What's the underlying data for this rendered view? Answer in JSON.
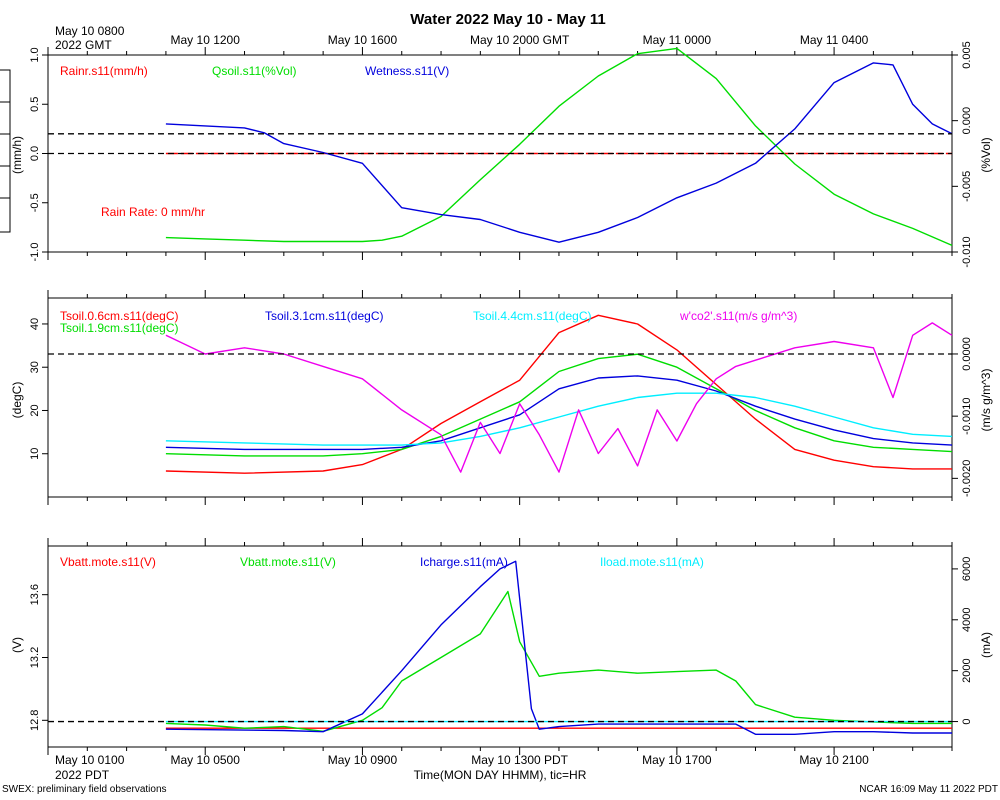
{
  "title": "Water 2022 May 10 - May 11",
  "top_axis": {
    "corner_label_line1": "May 10 0800",
    "corner_label_line2": "2022 GMT",
    "tick_labels": [
      "May 10 1200",
      "May 10 1600",
      "May 10 2000 GMT",
      "May 11 0000",
      "May 11 0400"
    ]
  },
  "bottom_axis": {
    "corner_label_line1": "May 10 0100",
    "corner_label_line2": "2022 PDT",
    "tick_labels": [
      "May 10 0500",
      "May 10 0900",
      "May 10 1300 PDT",
      "May 10 1700",
      "May 10 2100"
    ],
    "axis_title": "Time(MON DAY HHMM), tic=HR"
  },
  "footer": {
    "left": "SWEX: preliminary field observations",
    "right": "NCAR 16:09 May 11 2022 PDT"
  },
  "colors": {
    "red": "#ff0000",
    "green": "#00dd00",
    "blue": "#0000dd",
    "cyan": "#00eeff",
    "magenta": "#ee00ee",
    "black": "#000000"
  },
  "chart_data": [
    {
      "type": "line",
      "panel": "water",
      "x_range_hours_pdt": [
        0,
        23
      ],
      "ylabel_left": "(mm/h)",
      "ylabel_right": "(%Vol)",
      "ylim_left": [
        -1.0,
        1.0
      ],
      "ylim_right": [
        -0.01,
        0.005
      ],
      "yticks_left": [
        "-1.0",
        "-0.5",
        "0.0",
        "0.5",
        "1.0"
      ],
      "yticks_left_values": [
        -1.0,
        -0.5,
        0.0,
        0.5,
        1.0
      ],
      "yticks_right": [
        "-0.010",
        "-0.005",
        "0.000",
        "0.005"
      ],
      "yticks_right_values": [
        -0.01,
        -0.005,
        0.0,
        0.005
      ],
      "reference_lines": [
        {
          "axis": "left",
          "value": 0.0,
          "style": "dashed"
        },
        {
          "axis": "left",
          "value": 0.2,
          "style": "dashed"
        }
      ],
      "annotation": "Rain Rate: 0 mm/hr",
      "legend": [
        "Rainr.s11(mm/h)",
        "Qsoil.s11(%Vol)",
        "Wetness.s11(V)"
      ],
      "series": [
        {
          "name": "Rainr.s11(mm/h)",
          "color": "red",
          "axis": "left",
          "dashed": true,
          "x": [
            3.0,
            23.0
          ],
          "y": [
            0.0,
            0.0
          ]
        },
        {
          "name": "Qsoil.s11(%Vol)",
          "color": "green",
          "axis": "right",
          "x": [
            3,
            4,
            5,
            6,
            7,
            8,
            8.5,
            9,
            10,
            11,
            12,
            13,
            14,
            15,
            16,
            17,
            18,
            19,
            20,
            21,
            22,
            23
          ],
          "y": [
            -0.0089,
            -0.009,
            -0.0091,
            -0.0092,
            -0.0092,
            -0.0092,
            -0.0091,
            -0.0088,
            -0.0073,
            -0.0045,
            -0.0018,
            0.0011,
            0.0034,
            0.0051,
            0.0055,
            0.0032,
            -0.0004,
            -0.0033,
            -0.0056,
            -0.0071,
            -0.0082,
            -0.0095
          ]
        },
        {
          "name": "Wetness.s11(V)",
          "color": "blue",
          "axis": "left",
          "x": [
            3,
            4,
            5,
            5.5,
            6,
            7,
            8,
            9,
            10,
            11,
            12,
            13,
            14,
            15,
            16,
            17,
            18,
            19,
            20,
            21,
            21.5,
            22,
            22.5,
            23
          ],
          "y": [
            0.3,
            0.28,
            0.26,
            0.21,
            0.1,
            0.01,
            -0.1,
            -0.55,
            -0.62,
            -0.67,
            -0.8,
            -0.9,
            -0.8,
            -0.65,
            -0.45,
            -0.3,
            -0.1,
            0.25,
            0.72,
            0.92,
            0.9,
            0.5,
            0.3,
            0.2
          ]
        }
      ]
    },
    {
      "type": "line",
      "panel": "soil_temperature",
      "x_range_hours_pdt": [
        0,
        23
      ],
      "ylabel_left": "(degC)",
      "ylabel_right": "(m/s g/m^3)",
      "ylim_left": [
        0,
        46
      ],
      "ylim_right": [
        -0.0023,
        0.0009
      ],
      "yticks_left": [
        "10",
        "20",
        "30",
        "40"
      ],
      "yticks_left_values": [
        10,
        20,
        30,
        40
      ],
      "yticks_right": [
        "-0.0020",
        "-0.0010",
        "0.0000"
      ],
      "yticks_right_values": [
        -0.002,
        -0.001,
        0.0
      ],
      "reference_lines": [
        {
          "axis": "right",
          "value": 0.0,
          "style": "dashed"
        }
      ],
      "legend": [
        "Tsoil.0.6cm.s11(degC)",
        "Tsoil.1.9cm.s11(degC)",
        "Tsoil.3.1cm.s11(degC)",
        "Tsoil.4.4cm.s11(degC)",
        "w'co2'.s11(m/s g/m^3)"
      ],
      "series": [
        {
          "name": "Tsoil.0.6cm.s11(degC)",
          "color": "red",
          "axis": "left",
          "x": [
            3,
            5,
            7,
            8,
            9,
            10,
            11,
            12,
            13,
            14,
            15,
            16,
            17,
            18,
            19,
            20,
            21,
            22,
            23
          ],
          "y": [
            6,
            5.5,
            6,
            7.5,
            11,
            17,
            22,
            27,
            38,
            42,
            40,
            34,
            26,
            18,
            11,
            8.5,
            7,
            6.5,
            6.5
          ]
        },
        {
          "name": "Tsoil.1.9cm.s11(degC)",
          "color": "green",
          "axis": "left",
          "x": [
            3,
            5,
            7,
            8,
            9,
            10,
            11,
            12,
            13,
            14,
            15,
            16,
            17,
            18,
            19,
            20,
            21,
            22,
            23
          ],
          "y": [
            10,
            9.5,
            9.5,
            10,
            11,
            14,
            18,
            22,
            29,
            32,
            33,
            30,
            25,
            20,
            16,
            13,
            11.5,
            11,
            10.5
          ]
        },
        {
          "name": "Tsoil.3.1cm.s11(degC)",
          "color": "blue",
          "axis": "left",
          "x": [
            3,
            5,
            7,
            8,
            9,
            10,
            11,
            12,
            13,
            14,
            15,
            16,
            17,
            18,
            19,
            20,
            21,
            22,
            23
          ],
          "y": [
            11.5,
            11,
            11,
            11,
            11.5,
            13,
            16,
            19,
            25,
            27.5,
            28,
            27,
            24.5,
            21,
            18,
            15.5,
            13.5,
            12.5,
            12
          ]
        },
        {
          "name": "Tsoil.4.4cm.s11(degC)",
          "color": "cyan",
          "axis": "left",
          "x": [
            3,
            5,
            7,
            8,
            9,
            10,
            11,
            12,
            13,
            14,
            15,
            16,
            17,
            18,
            19,
            20,
            21,
            22,
            23
          ],
          "y": [
            13,
            12.5,
            12,
            12,
            12,
            12.5,
            14,
            16,
            18.5,
            21,
            23,
            24,
            24,
            23,
            21,
            18.5,
            16,
            14.5,
            14
          ]
        },
        {
          "name": "w'co2'.s11(m/s g/m^3)",
          "color": "magenta",
          "axis": "right",
          "x": [
            3,
            4,
            5,
            6,
            7,
            8,
            9,
            10,
            10.5,
            11,
            11.5,
            12,
            12.5,
            13,
            13.5,
            14,
            14.5,
            15,
            15.5,
            16,
            16.5,
            17,
            17.5,
            18,
            19,
            20,
            21,
            21.5,
            22,
            22.5,
            23
          ],
          "y": [
            0.0003,
            0.0,
            0.0001,
            0.0,
            -0.0002,
            -0.0004,
            -0.0009,
            -0.0013,
            -0.0019,
            -0.0011,
            -0.0016,
            -0.0008,
            -0.0013,
            -0.0019,
            -0.0009,
            -0.0016,
            -0.0012,
            -0.0018,
            -0.0009,
            -0.0014,
            -0.0008,
            -0.0004,
            -0.0002,
            -0.0001,
            0.0001,
            0.0002,
            0.0001,
            -0.0007,
            0.0003,
            0.0005,
            0.0003
          ]
        }
      ]
    },
    {
      "type": "line",
      "panel": "power",
      "x_range_hours_pdt": [
        0,
        23
      ],
      "ylabel_left": "(V)",
      "ylabel_right": "(mA)",
      "ylim_left": [
        12.63,
        13.91
      ],
      "ylim_right": [
        -1000,
        6900
      ],
      "yticks_left": [
        "12.8",
        "13.2",
        "13.6"
      ],
      "yticks_left_values": [
        12.8,
        13.2,
        13.6
      ],
      "yticks_right": [
        "0",
        "2000",
        "4000",
        "6000"
      ],
      "yticks_right_values": [
        0,
        2000,
        4000,
        6000
      ],
      "reference_lines": [
        {
          "axis": "right",
          "value": 0,
          "style": "dashed"
        }
      ],
      "legend": [
        "Vbatt.mote.s11(V)",
        "Vbatt.mote.s11(V)",
        "Icharge.s11(mA)",
        "Iload.mote.s11(mA)"
      ],
      "series": [
        {
          "name": "Vbatt.mote.s11(V)",
          "color": "red",
          "axis": "left",
          "x": [
            3,
            23
          ],
          "y": [
            12.75,
            12.75
          ]
        },
        {
          "name": "Vbatt.mote.s11(V)",
          "color": "green",
          "axis": "left",
          "x": [
            3,
            4,
            5,
            6,
            7,
            8,
            8.5,
            9,
            10,
            11,
            11.7,
            12,
            12.5,
            13,
            14,
            15,
            16,
            17,
            17.5,
            18,
            19,
            20,
            21,
            22,
            23
          ],
          "y": [
            12.78,
            12.77,
            12.75,
            12.76,
            12.73,
            12.8,
            12.88,
            13.05,
            13.2,
            13.35,
            13.62,
            13.3,
            13.08,
            13.1,
            13.12,
            13.1,
            13.11,
            13.12,
            13.05,
            12.9,
            12.82,
            12.8,
            12.79,
            12.78,
            12.78
          ]
        },
        {
          "name": "Icharge.s11(mA)",
          "color": "blue",
          "axis": "right",
          "x": [
            3,
            6,
            7,
            8,
            9,
            10,
            11,
            11.5,
            11.9,
            12.3,
            12.5,
            13,
            14,
            15,
            16,
            17,
            17.5,
            18,
            19,
            20,
            21,
            22,
            23
          ],
          "y": [
            -300,
            -350,
            -400,
            300,
            2000,
            3800,
            5300,
            6000,
            6300,
            500,
            -300,
            -200,
            -100,
            -100,
            -100,
            -100,
            -100,
            -500,
            -500,
            -400,
            -400,
            -450,
            -450
          ]
        },
        {
          "name": "Iload.mote.s11(mA)",
          "color": "cyan",
          "axis": "right",
          "x": [
            3,
            23
          ],
          "y": [
            0,
            0
          ]
        }
      ]
    }
  ]
}
